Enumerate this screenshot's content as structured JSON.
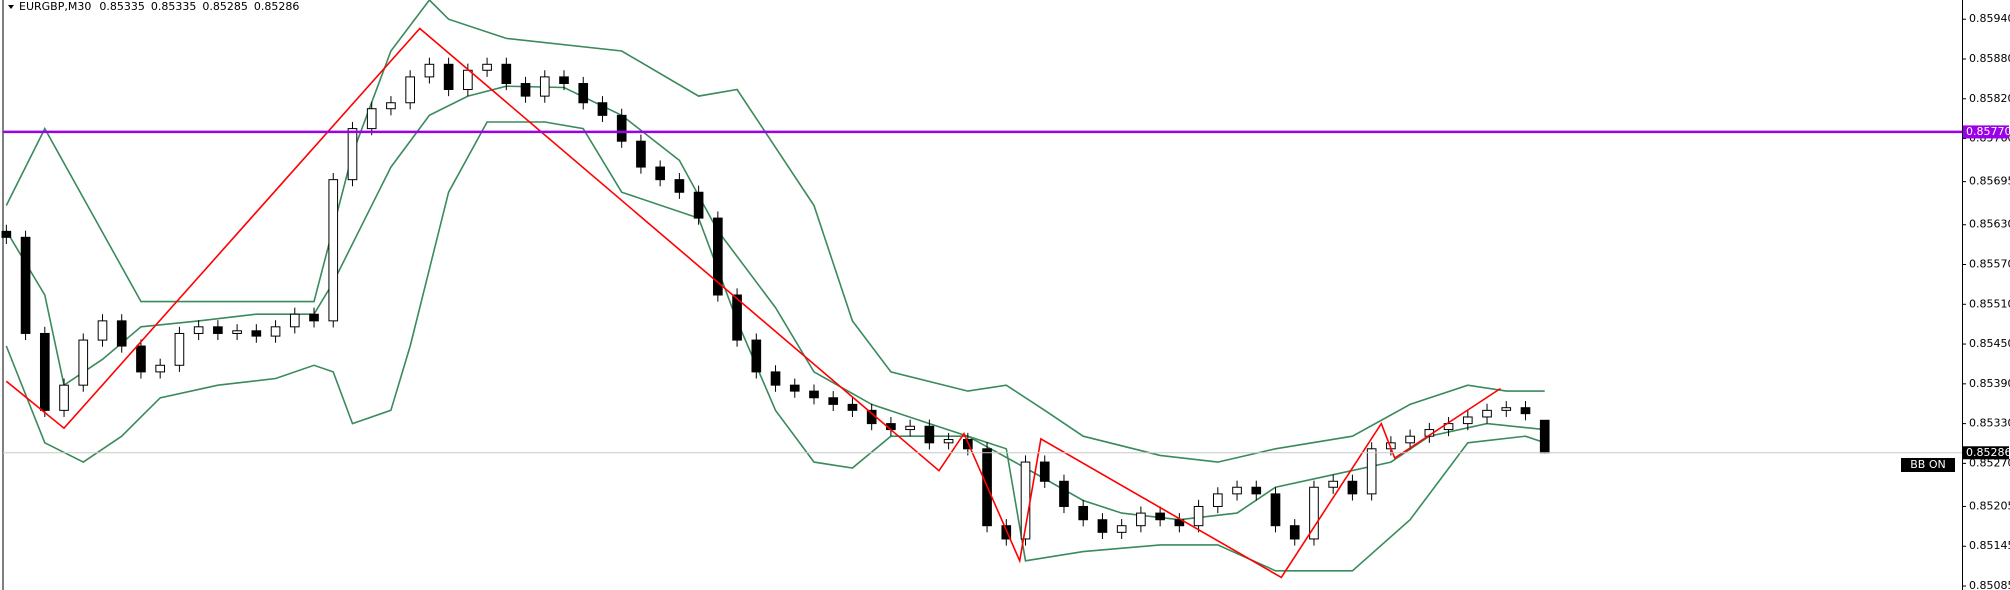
{
  "chart_data": {
    "type": "candlestick",
    "title": "EURGBP,M30",
    "header_values": [
      0.85335,
      0.85335,
      0.85285,
      0.85286
    ],
    "annotation": "BB ON",
    "xlim": [
      -0.33,
      101.7
    ],
    "ylim": [
      0.85079,
      0.85969
    ],
    "yticks": [
      {
        "value": 0.8594,
        "label": "0.85940"
      },
      {
        "value": 0.8588,
        "label": "0.85880"
      },
      {
        "value": 0.8582,
        "label": "0.85820"
      },
      {
        "value": 0.8576,
        "label": "0.85760"
      },
      {
        "value": 0.85695,
        "label": "0.85695"
      },
      {
        "value": 0.8563,
        "label": "0.85630"
      },
      {
        "value": 0.8557,
        "label": "0.85570"
      },
      {
        "value": 0.8551,
        "label": "0.85510"
      },
      {
        "value": 0.8545,
        "label": "0.85450"
      },
      {
        "value": 0.8539,
        "label": "0.85390"
      },
      {
        "value": 0.8533,
        "label": "0.85330"
      },
      {
        "value": 0.8527,
        "label": "0.85270"
      },
      {
        "value": 0.85205,
        "label": "0.85205"
      },
      {
        "value": 0.85145,
        "label": "0.85145"
      },
      {
        "value": 0.85085,
        "label": "0.85085"
      }
    ],
    "price_lines": [
      {
        "value": 0.8577,
        "label": "0.85770",
        "color": "#9b00e8"
      },
      {
        "value": 0.85286,
        "label": "0.85286",
        "color": "#c8c8c8"
      }
    ],
    "candle_up_color": "#ffffff",
    "candle_down_color": "#000000",
    "open": [
      0.8562,
      0.85611,
      0.85466,
      0.8535,
      0.85388,
      0.85456,
      0.85485,
      0.85447,
      0.85408,
      0.85418,
      0.85466,
      0.85476,
      0.85466,
      0.8547,
      0.85462,
      0.85476,
      0.85495,
      0.85485,
      0.85698,
      0.85775,
      0.85805,
      0.85814,
      0.85853,
      0.85872,
      0.85834,
      0.85863,
      0.85872,
      0.85843,
      0.85824,
      0.85853,
      0.85843,
      0.85814,
      0.85795,
      0.85756,
      0.85717,
      0.85698,
      0.85679,
      0.8564,
      0.85524,
      0.85456,
      0.85408,
      0.85388,
      0.85379,
      0.85369,
      0.85359,
      0.8535,
      0.8533,
      0.85321,
      0.85326,
      0.85301,
      0.85306,
      0.85292,
      0.85176,
      0.85156,
      0.85272,
      0.85243,
      0.85205,
      0.85185,
      0.85166,
      0.85176,
      0.85195,
      0.85185,
      0.85176,
      0.85205,
      0.85224,
      0.85234,
      0.85224,
      0.85176,
      0.85156,
      0.85234,
      0.85243,
      0.85224,
      0.85292,
      0.85301,
      0.85311,
      0.85321,
      0.8533,
      0.8534,
      0.8535,
      0.85354,
      0.85335
    ],
    "high": [
      0.8563,
      0.85621,
      0.85476,
      0.85398,
      0.85466,
      0.85495,
      0.85495,
      0.85457,
      0.85428,
      0.85476,
      0.85486,
      0.85486,
      0.8548,
      0.8548,
      0.85486,
      0.85505,
      0.85505,
      0.85708,
      0.85785,
      0.85815,
      0.85824,
      0.85863,
      0.85882,
      0.85882,
      0.85873,
      0.85882,
      0.85882,
      0.85853,
      0.85863,
      0.85863,
      0.85853,
      0.85824,
      0.85805,
      0.85766,
      0.85727,
      0.85708,
      0.85689,
      0.8565,
      0.85534,
      0.85466,
      0.85418,
      0.85398,
      0.85389,
      0.85379,
      0.85369,
      0.8536,
      0.8534,
      0.85336,
      0.85336,
      0.85316,
      0.85316,
      0.85302,
      0.85186,
      0.85282,
      0.85282,
      0.85253,
      0.85215,
      0.85195,
      0.85186,
      0.85205,
      0.85205,
      0.85195,
      0.85215,
      0.85234,
      0.85244,
      0.85244,
      0.85234,
      0.85186,
      0.85244,
      0.85253,
      0.85253,
      0.85302,
      0.85311,
      0.85321,
      0.85331,
      0.8534,
      0.8535,
      0.8536,
      0.85364,
      0.85364,
      0.85335
    ],
    "low": [
      0.85601,
      0.85456,
      0.8534,
      0.8534,
      0.85378,
      0.85446,
      0.85437,
      0.85398,
      0.85398,
      0.85408,
      0.85456,
      0.85456,
      0.85456,
      0.85452,
      0.85452,
      0.85466,
      0.85475,
      0.85475,
      0.85688,
      0.85765,
      0.85795,
      0.85804,
      0.85843,
      0.85824,
      0.85824,
      0.85853,
      0.85833,
      0.85814,
      0.85814,
      0.85833,
      0.85804,
      0.85785,
      0.85746,
      0.85707,
      0.85688,
      0.85669,
      0.8563,
      0.85514,
      0.85446,
      0.85398,
      0.85378,
      0.85369,
      0.85359,
      0.85349,
      0.8534,
      0.8532,
      0.85311,
      0.85311,
      0.85291,
      0.85291,
      0.85282,
      0.85166,
      0.85146,
      0.85146,
      0.85233,
      0.85195,
      0.85175,
      0.85156,
      0.85156,
      0.85166,
      0.85175,
      0.85166,
      0.85166,
      0.85195,
      0.85214,
      0.85214,
      0.85166,
      0.85146,
      0.85146,
      0.85224,
      0.85214,
      0.85214,
      0.85282,
      0.85291,
      0.85301,
      0.85311,
      0.8532,
      0.8533,
      0.8534,
      0.85335,
      0.85285
    ],
    "close": [
      0.85611,
      0.85466,
      0.8535,
      0.85388,
      0.85456,
      0.85485,
      0.85447,
      0.85408,
      0.85418,
      0.85466,
      0.85476,
      0.85466,
      0.8547,
      0.85462,
      0.85476,
      0.85495,
      0.85485,
      0.85698,
      0.85775,
      0.85805,
      0.85814,
      0.85853,
      0.85872,
      0.85834,
      0.85863,
      0.85872,
      0.85843,
      0.85824,
      0.85853,
      0.85843,
      0.85814,
      0.85795,
      0.85756,
      0.85717,
      0.85698,
      0.85679,
      0.8564,
      0.85524,
      0.85456,
      0.85408,
      0.85388,
      0.85379,
      0.85369,
      0.85359,
      0.8535,
      0.8533,
      0.85321,
      0.85326,
      0.85301,
      0.85306,
      0.85292,
      0.85176,
      0.85156,
      0.85272,
      0.85243,
      0.85205,
      0.85185,
      0.85166,
      0.85176,
      0.85195,
      0.85185,
      0.85176,
      0.85205,
      0.85224,
      0.85234,
      0.85224,
      0.85176,
      0.85156,
      0.85234,
      0.85243,
      0.85224,
      0.85292,
      0.85301,
      0.85311,
      0.85321,
      0.8533,
      0.8534,
      0.8535,
      0.85354,
      0.85345,
      0.85286
    ],
    "series": [
      {
        "color": "#3a8a5c",
        "x": [
          0,
          2,
          7,
          16,
          18,
          20,
          22,
          23,
          26,
          32,
          36,
          38,
          42,
          44,
          46,
          50,
          52,
          54,
          56,
          60,
          63,
          66,
          70,
          73,
          76,
          78,
          80
        ],
        "values": [
          0.85659,
          0.85775,
          0.85514,
          0.85514,
          0.85737,
          0.85892,
          0.85969,
          0.8594,
          0.85911,
          0.85892,
          0.85824,
          0.85834,
          0.85659,
          0.85485,
          0.85408,
          0.85379,
          0.85388,
          0.8535,
          0.85311,
          0.85282,
          0.85272,
          0.85292,
          0.85311,
          0.85359,
          0.85388,
          0.85379,
          0.85379
        ]
      },
      {
        "color": "#3a8a5c",
        "x": [
          0,
          2,
          3,
          5,
          7,
          10,
          13,
          16,
          17,
          20,
          22,
          24,
          26,
          29,
          32,
          35,
          37,
          40,
          42,
          45,
          48,
          50,
          53,
          56,
          58,
          61,
          64,
          66,
          69,
          72,
          74,
          77,
          80
        ],
        "values": [
          0.85621,
          0.85524,
          0.85388,
          0.85427,
          0.85476,
          0.85485,
          0.85495,
          0.85495,
          0.85543,
          0.85717,
          0.85795,
          0.85824,
          0.85839,
          0.85837,
          0.85795,
          0.85727,
          0.85621,
          0.85505,
          0.85408,
          0.85359,
          0.8533,
          0.85311,
          0.85263,
          0.85214,
          0.85195,
          0.85185,
          0.85195,
          0.85234,
          0.85253,
          0.85272,
          0.85311,
          0.8533,
          0.85321
        ]
      },
      {
        "color": "#3a8a5c",
        "x": [
          0,
          2,
          4,
          6,
          8,
          11,
          14,
          16,
          17,
          18,
          20,
          21,
          23,
          25,
          28,
          30,
          32,
          36,
          38,
          40,
          42,
          44,
          46,
          50,
          52,
          53,
          56,
          60,
          63,
          66,
          70,
          73,
          76,
          79,
          80
        ],
        "values": [
          0.85447,
          0.85301,
          0.85272,
          0.85311,
          0.85369,
          0.85388,
          0.85398,
          0.85418,
          0.85408,
          0.8533,
          0.8535,
          0.85447,
          0.85679,
          0.85785,
          0.85785,
          0.85775,
          0.85679,
          0.8564,
          0.85485,
          0.8535,
          0.85272,
          0.85263,
          0.85311,
          0.85311,
          0.85292,
          0.85123,
          0.85137,
          0.85147,
          0.85147,
          0.85108,
          0.85108,
          0.85185,
          0.85301,
          0.85311,
          0.85301
        ]
      },
      {
        "color": "#ff0000",
        "x": [
          0,
          3,
          21.5,
          48.5,
          49.8,
          52.7,
          53.8,
          66.3,
          71.5,
          72.2,
          77.7
        ],
        "values": [
          0.85394,
          0.85323,
          0.85926,
          0.85259,
          0.85315,
          0.85123,
          0.85307,
          0.85098,
          0.8533,
          0.85278,
          0.85383
        ]
      }
    ]
  }
}
